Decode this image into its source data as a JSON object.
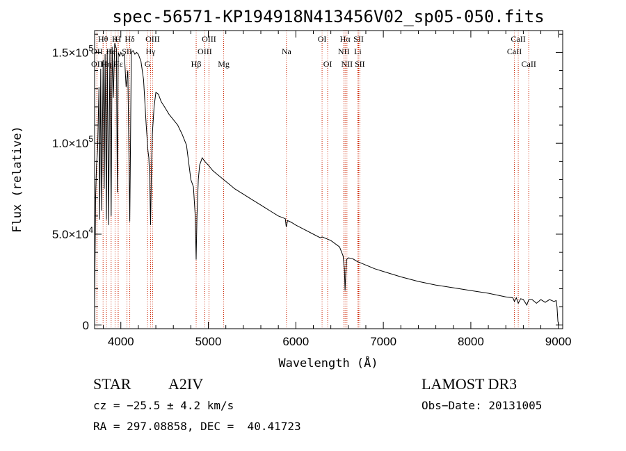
{
  "chart_data": {
    "type": "line",
    "title": "spec-56571-KP194918N413456V02_sp05-050.fits",
    "xlabel": "Wavelength (Å)",
    "ylabel": "Flux (relative)",
    "xlim": [
      3700,
      9050
    ],
    "ylim": [
      -2000,
      162000
    ],
    "xticks": [
      {
        "value": 4000,
        "label": "4000"
      },
      {
        "value": 5000,
        "label": "5000"
      },
      {
        "value": 6000,
        "label": "6000"
      },
      {
        "value": 7000,
        "label": "7000"
      },
      {
        "value": 8000,
        "label": "8000"
      },
      {
        "value": 9000,
        "label": "9000"
      }
    ],
    "yticks": [
      {
        "value": 0,
        "base": "0",
        "exp": ""
      },
      {
        "value": 50000,
        "base": "5.0×10",
        "exp": "4"
      },
      {
        "value": 100000,
        "base": "1.0×10",
        "exp": "5"
      },
      {
        "value": 150000,
        "base": "1.5×10",
        "exp": "5"
      }
    ],
    "spectrum": {
      "x": [
        3700,
        3712,
        3722,
        3735,
        3750,
        3758,
        3770,
        3780,
        3798,
        3810,
        3820,
        3835,
        3845,
        3860,
        3875,
        3889,
        3900,
        3915,
        3930,
        3950,
        3960,
        3970,
        3985,
        4000,
        4020,
        4040,
        4060,
        4080,
        4102,
        4120,
        4140,
        4160,
        4180,
        4200,
        4230,
        4260,
        4290,
        4310,
        4320,
        4330,
        4340,
        4350,
        4360,
        4380,
        4400,
        4430,
        4460,
        4500,
        4550,
        4600,
        4650,
        4700,
        4750,
        4800,
        4830,
        4850,
        4861,
        4870,
        4885,
        4900,
        4930,
        4960,
        5000,
        5050,
        5100,
        5150,
        5200,
        5250,
        5300,
        5400,
        5500,
        5600,
        5700,
        5800,
        5880,
        5890,
        5896,
        5905,
        5950,
        6000,
        6100,
        6200,
        6280,
        6300,
        6400,
        6500,
        6540,
        6555,
        6563,
        6570,
        6580,
        6600,
        6650,
        6700,
        6800,
        6900,
        7000,
        7200,
        7400,
        7600,
        7800,
        8000,
        8200,
        8400,
        8480,
        8498,
        8520,
        8542,
        8570,
        8600,
        8640,
        8662,
        8700,
        8750,
        8800,
        8850,
        8900,
        8950,
        8975,
        8985,
        8995,
        9005
      ],
      "y": [
        10000,
        71000,
        88000,
        97000,
        131000,
        58000,
        141000,
        63000,
        146000,
        75000,
        149000,
        58000,
        151000,
        55000,
        152000,
        60000,
        153000,
        125000,
        155000,
        152000,
        73000,
        150000,
        148000,
        150000,
        148000,
        149000,
        131000,
        140000,
        57000,
        150000,
        151000,
        149000,
        150000,
        149000,
        145000,
        135000,
        110000,
        96000,
        92000,
        80000,
        55000,
        88000,
        105000,
        120000,
        128000,
        127000,
        123000,
        120000,
        116000,
        113000,
        110000,
        105000,
        99000,
        80000,
        76000,
        60000,
        36000,
        60000,
        80000,
        88000,
        92000,
        90000,
        88000,
        85000,
        83000,
        81000,
        79000,
        77000,
        75000,
        72000,
        69000,
        66000,
        63000,
        60000,
        58500,
        54000,
        55000,
        57500,
        56500,
        55000,
        52500,
        50000,
        48000,
        48500,
        46500,
        43000,
        38000,
        31000,
        19000,
        28000,
        36000,
        37000,
        36500,
        35000,
        33000,
        31000,
        29500,
        26500,
        24000,
        22000,
        20500,
        19000,
        17500,
        15500,
        15000,
        13000,
        15000,
        12000,
        14500,
        14000,
        11000,
        14000,
        14000,
        12000,
        14000,
        12500,
        14000,
        13000,
        13500,
        10000,
        2000,
        0
      ]
    },
    "spectral_lines": [
      {
        "label": "Hθ",
        "x": 3797,
        "row": 1
      },
      {
        "label": "OII",
        "x": 3727,
        "row": 3
      },
      {
        "label": "OII",
        "x": 3727,
        "row": 2
      },
      {
        "label": "Hη",
        "x": 3835,
        "row": 3
      },
      {
        "label": "He",
        "x": 3889,
        "row": 2
      },
      {
        "label": "K",
        "x": 3934,
        "row": 1
      },
      {
        "label": "Hε",
        "x": 3970,
        "row": 3
      },
      {
        "label": "H",
        "x": 3969,
        "row": 1
      },
      {
        "label": "SII",
        "x": 4070,
        "row": 2
      },
      {
        "label": "Hδ",
        "x": 4102,
        "row": 1
      },
      {
        "label": "OIII",
        "x": 4363,
        "row": 1
      },
      {
        "label": "Hγ",
        "x": 4340,
        "row": 2
      },
      {
        "label": "G",
        "x": 4305,
        "row": 3
      },
      {
        "label": "Hβ",
        "x": 4861,
        "row": 3
      },
      {
        "label": "OIII",
        "x": 5007,
        "row": 1
      },
      {
        "label": "OIII",
        "x": 4959,
        "row": 2
      },
      {
        "label": "Mg",
        "x": 5175,
        "row": 3
      },
      {
        "label": "Na",
        "x": 5893,
        "row": 2
      },
      {
        "label": "OI",
        "x": 6300,
        "row": 1
      },
      {
        "label": "OI",
        "x": 6364,
        "row": 3
      },
      {
        "label": "Hα",
        "x": 6563,
        "row": 1
      },
      {
        "label": "NII",
        "x": 6548,
        "row": 2
      },
      {
        "label": "NII",
        "x": 6584,
        "row": 3
      },
      {
        "label": "SII",
        "x": 6717,
        "row": 1
      },
      {
        "label": "Li",
        "x": 6708,
        "row": 2
      },
      {
        "label": "SII",
        "x": 6731,
        "row": 3
      },
      {
        "label": "CaII",
        "x": 8542,
        "row": 1
      },
      {
        "label": "CaII",
        "x": 8498,
        "row": 2
      },
      {
        "label": "CaII",
        "x": 8662,
        "row": 3
      }
    ],
    "colors": {
      "spectrum": "#000000",
      "lines": "#cc2200",
      "axes": "#000000"
    }
  },
  "info": {
    "object_class": "STAR",
    "subclass": "A2IV",
    "survey": "LAMOST DR3",
    "cz": "cz = −25.5 ± 4.2 km/s",
    "obs_date": "Obs−Date: 20131005",
    "coords": "RA = 297.08858, DEC =  40.41723"
  }
}
